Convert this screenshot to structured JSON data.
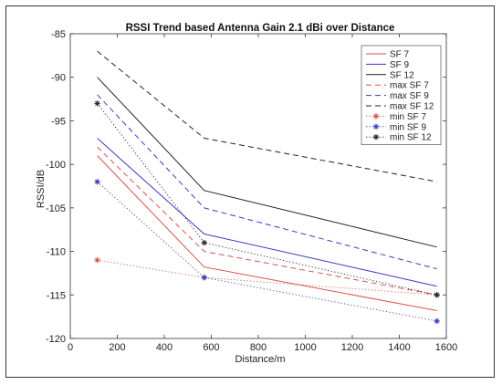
{
  "chart_data": {
    "type": "line",
    "title": "RSSI Trend based Antenna Gain 2.1 dBi over Distance",
    "xlabel": "Distance/m",
    "ylabel": "RSSI/dB",
    "xlim": [
      0,
      1600
    ],
    "ylim": [
      -120,
      -85
    ],
    "xticks": [
      "0",
      "200",
      "400",
      "600",
      "800",
      "1000",
      "1200",
      "1400",
      "1600"
    ],
    "yticks": [
      "-85",
      "-90",
      "-95",
      "-100",
      "-105",
      "-110",
      "-115",
      "-120"
    ],
    "grid": false,
    "legend_position": "top-right",
    "x": [
      115,
      570,
      1560
    ],
    "series": [
      {
        "name": "SF 7",
        "values": [
          -99,
          -111.8,
          -116.8
        ],
        "color": "#d9534f",
        "style": "solid",
        "marker": ""
      },
      {
        "name": "SF 9",
        "values": [
          -97,
          -108,
          -114
        ],
        "color": "#3b3bbf",
        "style": "solid",
        "marker": ""
      },
      {
        "name": "SF 12",
        "values": [
          -90,
          -103,
          -109.5
        ],
        "color": "#222222",
        "style": "solid",
        "marker": ""
      },
      {
        "name": "max SF 7",
        "values": [
          -98,
          -110,
          -115
        ],
        "color": "#d9534f",
        "style": "dashed",
        "marker": ""
      },
      {
        "name": "max SF 9",
        "values": [
          -92,
          -105,
          -112
        ],
        "color": "#3b3bbf",
        "style": "dashed",
        "marker": ""
      },
      {
        "name": "max SF 12",
        "values": [
          -87,
          -97,
          -102
        ],
        "color": "#222222",
        "style": "dashed",
        "marker": ""
      },
      {
        "name": "min SF 7",
        "values": [
          -111,
          -113,
          -115
        ],
        "color": "#d9534f",
        "style": "dotted",
        "marker": "*"
      },
      {
        "name": "min SF 9",
        "values": [
          -102,
          -113,
          -118
        ],
        "color": "#3b3bbf",
        "style": "dotted",
        "marker": "*"
      },
      {
        "name": "min SF 12",
        "values": [
          -93,
          -109,
          -115
        ],
        "color": "#222222",
        "style": "dotted",
        "marker": "*"
      }
    ]
  }
}
